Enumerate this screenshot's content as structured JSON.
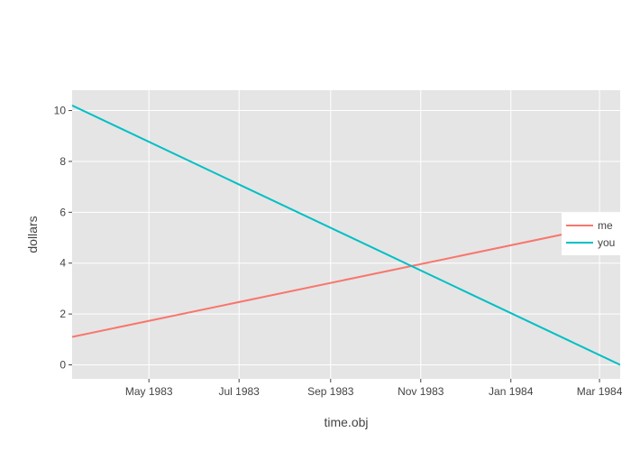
{
  "chart_data": {
    "type": "line",
    "title": "",
    "xlabel": "time.obj",
    "ylabel": "dollars",
    "x_axis_type": "date",
    "x_range": [
      "1983-03-10",
      "1984-03-15"
    ],
    "ylim": [
      -0.55,
      10.8
    ],
    "x_ticks": [
      {
        "date": "1983-05-01",
        "label": "May 1983"
      },
      {
        "date": "1983-07-01",
        "label": "Jul 1983"
      },
      {
        "date": "1983-09-01",
        "label": "Sep 1983"
      },
      {
        "date": "1983-11-01",
        "label": "Nov 1983"
      },
      {
        "date": "1984-01-01",
        "label": "Jan 1984"
      },
      {
        "date": "1984-03-01",
        "label": "Mar 1984"
      }
    ],
    "y_ticks": [
      0,
      2,
      4,
      6,
      8,
      10
    ],
    "grid": true,
    "legend": {
      "position": "right",
      "entries": [
        "me",
        "you"
      ]
    },
    "series": [
      {
        "name": "me",
        "color": "#F8766D",
        "points": [
          {
            "x": "1983-03-10",
            "y": 1.1
          },
          {
            "x": "1984-03-15",
            "y": 5.6
          }
        ]
      },
      {
        "name": "you",
        "color": "#00BFC4",
        "points": [
          {
            "x": "1983-03-10",
            "y": 10.2
          },
          {
            "x": "1984-03-15",
            "y": 0.0
          }
        ]
      }
    ],
    "colors": {
      "panel_background": "#E5E5E5",
      "grid": "#FFFFFF",
      "axis_text": "#444444",
      "title_text": "#444444"
    }
  }
}
